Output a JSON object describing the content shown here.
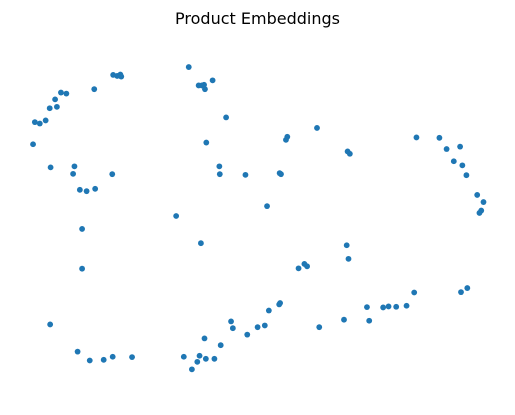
{
  "chart_data": {
    "type": "scatter",
    "title": "Product Embeddings",
    "xlabel": "",
    "ylabel": "",
    "axes_visible": false,
    "grid": false,
    "legend": "none",
    "xlim": [
      0,
      100
    ],
    "ylim": [
      0,
      100
    ],
    "marker_color": "#1f77b4",
    "series": [
      {
        "points": [
          [
            34.5,
            93.8
          ],
          [
            39.8,
            89.9
          ],
          [
            36.7,
            88.4
          ],
          [
            37.9,
            88.6
          ],
          [
            37.4,
            88.4
          ],
          [
            38.1,
            87.3
          ],
          [
            42.8,
            79.0
          ],
          [
            17.7,
            91.5
          ],
          [
            18.6,
            91.2
          ],
          [
            19.3,
            91.6
          ],
          [
            19.5,
            91.0
          ],
          [
            13.5,
            87.3
          ],
          [
            6.1,
            86.3
          ],
          [
            7.3,
            86.0
          ],
          [
            4.8,
            84.3
          ],
          [
            5.2,
            82.1
          ],
          [
            3.6,
            81.7
          ],
          [
            0.3,
            77.6
          ],
          [
            1.4,
            77.2
          ],
          [
            2.7,
            78.1
          ],
          [
            -0.1,
            71.1
          ],
          [
            3.8,
            64.3
          ],
          [
            9.1,
            64.6
          ],
          [
            8.8,
            62.4
          ],
          [
            17.5,
            62.3
          ],
          [
            10.3,
            57.7
          ],
          [
            11.8,
            57.3
          ],
          [
            13.7,
            58.0
          ],
          [
            10.8,
            46.2
          ],
          [
            10.8,
            34.5
          ],
          [
            3.7,
            18.1
          ],
          [
            9.8,
            10.1
          ],
          [
            12.5,
            7.5
          ],
          [
            15.6,
            7.7
          ],
          [
            17.6,
            8.6
          ],
          [
            21.9,
            8.5
          ],
          [
            38.4,
            71.6
          ],
          [
            41.4,
            62.3
          ],
          [
            41.3,
            64.6
          ],
          [
            47.1,
            62.1
          ],
          [
            31.7,
            50.0
          ],
          [
            37.2,
            42.0
          ],
          [
            38.0,
            14.0
          ],
          [
            51.9,
            52.9
          ],
          [
            56.1,
            72.4
          ],
          [
            56.4,
            73.3
          ],
          [
            55.0,
            62.3
          ],
          [
            54.7,
            62.6
          ],
          [
            63.0,
            75.9
          ],
          [
            69.8,
            69.0
          ],
          [
            70.3,
            68.3
          ],
          [
            85.1,
            73.1
          ],
          [
            90.2,
            73.0
          ],
          [
            91.8,
            69.7
          ],
          [
            94.8,
            70.4
          ],
          [
            93.4,
            66.1
          ],
          [
            95.3,
            64.9
          ],
          [
            96.2,
            62.0
          ],
          [
            98.6,
            56.2
          ],
          [
            100.0,
            54.1
          ],
          [
            99.5,
            51.6
          ],
          [
            99.1,
            50.9
          ],
          [
            58.9,
            34.6
          ],
          [
            60.2,
            35.9
          ],
          [
            60.8,
            35.2
          ],
          [
            69.6,
            41.4
          ],
          [
            70.0,
            37.4
          ],
          [
            43.9,
            19.0
          ],
          [
            44.3,
            17.0
          ],
          [
            47.5,
            15.1
          ],
          [
            49.8,
            17.3
          ],
          [
            51.4,
            17.8
          ],
          [
            52.3,
            22.2
          ],
          [
            54.6,
            24.0
          ],
          [
            54.8,
            24.4
          ],
          [
            63.5,
            17.3
          ],
          [
            69.0,
            19.5
          ],
          [
            74.1,
            23.2
          ],
          [
            74.6,
            19.2
          ],
          [
            77.7,
            23.1
          ],
          [
            78.9,
            23.4
          ],
          [
            80.6,
            23.3
          ],
          [
            82.9,
            23.6
          ],
          [
            84.6,
            27.5
          ],
          [
            95.0,
            27.6
          ],
          [
            96.4,
            28.8
          ],
          [
            33.4,
            8.6
          ],
          [
            35.2,
            4.9
          ],
          [
            36.4,
            7.1
          ],
          [
            36.9,
            8.9
          ],
          [
            38.3,
            8.0
          ],
          [
            40.2,
            8.0
          ],
          [
            41.6,
            12.0
          ]
        ]
      }
    ]
  }
}
